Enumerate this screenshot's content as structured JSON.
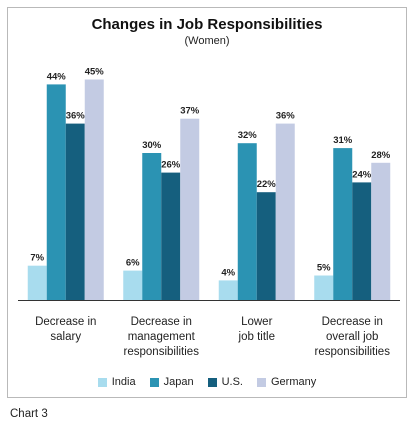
{
  "chart_data": {
    "type": "bar",
    "title": "Changes in Job Responsibilities",
    "subtitle": "(Women)",
    "categories": [
      [
        "Decrease in",
        "salary"
      ],
      [
        "Decrease in",
        "management",
        "responsibilities"
      ],
      [
        "Lower",
        "job title"
      ],
      [
        "Decrease in",
        "overall job",
        "responsibilities"
      ]
    ],
    "series": [
      {
        "name": "India",
        "color": "#a8dcee",
        "values": [
          7,
          6,
          4,
          5
        ]
      },
      {
        "name": "Japan",
        "color": "#2b93b3",
        "values": [
          44,
          30,
          32,
          31
        ]
      },
      {
        "name": "U.S.",
        "color": "#155f7e",
        "values": [
          36,
          26,
          22,
          24
        ]
      },
      {
        "name": "Germany",
        "color": "#c3cbe3",
        "values": [
          45,
          37,
          36,
          28
        ]
      }
    ],
    "value_suffix": "%",
    "ylim": [
      0,
      50
    ],
    "legend_position": "bottom",
    "grid": false
  },
  "caption": "Chart 3"
}
